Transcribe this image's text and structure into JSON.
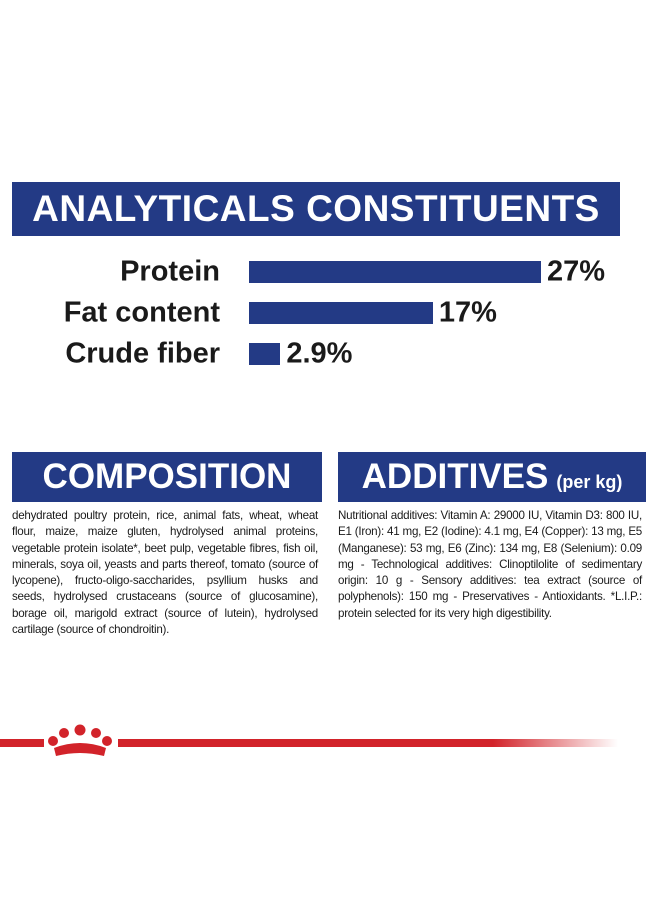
{
  "header": {
    "title": "ANALYTICALS CONSTITUENTS"
  },
  "chart_data": {
    "type": "bar",
    "categories": [
      "Protein",
      "Fat content",
      "Crude fiber"
    ],
    "values": [
      27,
      17,
      2.9
    ],
    "value_labels": [
      "27%",
      "17%",
      "2.9%"
    ],
    "color": "#233a85"
  },
  "composition": {
    "title": "COMPOSITION",
    "text": "dehydrated poultry protein, rice, animal fats, wheat, wheat flour, maize, maize gluten, hydrolysed animal proteins, vegetable protein isolate*, beet pulp, vegetable fibres, fish oil, minerals, soya oil, yeasts and parts thereof, tomato (source of lycopene), fructo-oligo-saccharides, psyllium husks and seeds, hydrolysed crustaceans (source of glucosamine), borage oil, marigold extract (source of lutein), hydrolysed cartilage (source of chondroitin)."
  },
  "additives": {
    "title": "ADDITIVES",
    "unit": "(per kg)",
    "text": "Nutritional additives: Vitamin A: 29000 IU, Vitamin D3: 800 IU, E1 (Iron): 41 mg, E2 (Iodine): 4.1 mg, E4 (Copper): 13 mg, E5 (Manganese): 53 mg, E6 (Zinc): 134 mg, E8 (Selenium): 0.09 mg - Technological additives: Clinoptilolite of sedimentary origin: 10 g - Sensory additives: tea extract (source of polyphenols): 150 mg - Preservatives - Antioxidants. *L.I.P.: protein selected for its very high digestibility."
  }
}
